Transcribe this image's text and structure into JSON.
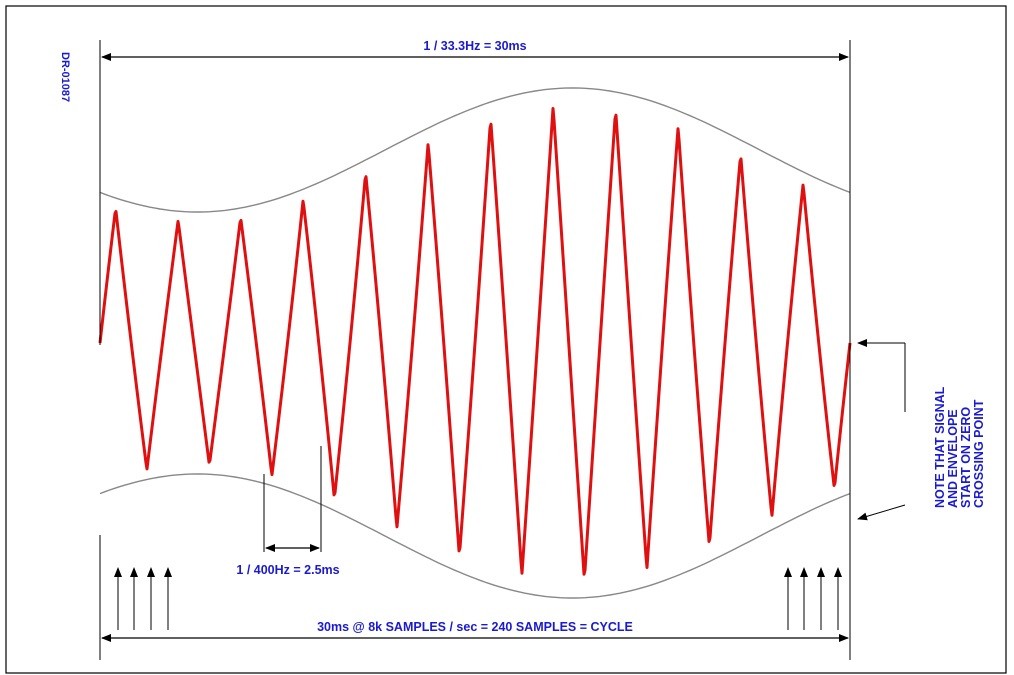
{
  "diagram": {
    "drawing_number": "DR-01087",
    "top_dimension_label": "1 / 33.3Hz = 30ms",
    "period_dimension_label": "1 / 400Hz = 2.5ms",
    "bottom_dimension_label": "30ms @ 8k SAMPLES / sec = 240 SAMPLES = CYCLE",
    "note_lines": [
      "NOTE THAT SIGNAL",
      "AND ENVELOPE",
      "START ON ZERO",
      "CROSSING POINT"
    ],
    "signal_color": "#e01010",
    "envelope_color": "#888888",
    "dimension_color": "#000000",
    "label_color": "#1a1ad0"
  }
}
